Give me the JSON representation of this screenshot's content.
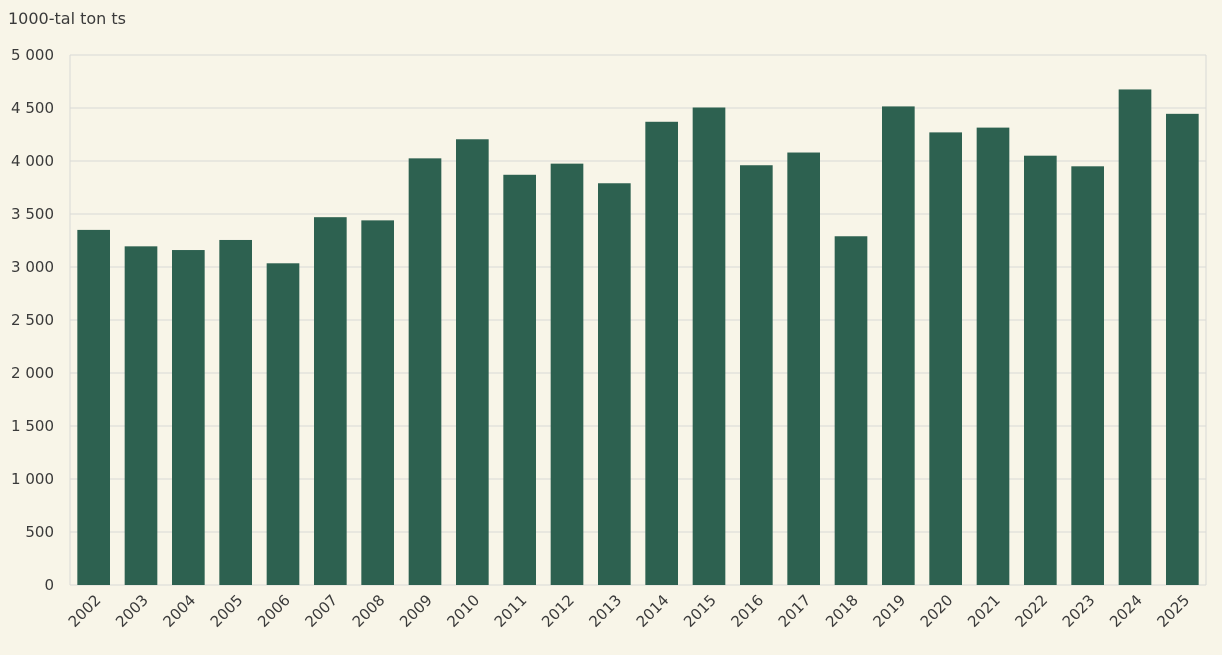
{
  "chart_data": {
    "type": "bar",
    "title": "",
    "xlabel": "",
    "ylabel": "1000-tal ton ts",
    "categories": [
      "2002",
      "2003",
      "2004",
      "2005",
      "2006",
      "2007",
      "2008",
      "2009",
      "2010",
      "2011",
      "2012",
      "2013",
      "2014",
      "2015",
      "2016",
      "2017",
      "2018",
      "2019",
      "2020",
      "2021",
      "2022",
      "2023",
      "2024",
      "2025"
    ],
    "values": [
      3350,
      3195,
      3160,
      3255,
      3035,
      3470,
      3440,
      4025,
      4205,
      3870,
      3975,
      3790,
      4370,
      4505,
      3960,
      4080,
      3290,
      4515,
      4270,
      4315,
      4050,
      3950,
      4675,
      4445
    ],
    "ylim": [
      0,
      5000
    ],
    "yticks": [
      0,
      500,
      1000,
      1500,
      2000,
      2500,
      3000,
      3500,
      4000,
      4500,
      5000
    ],
    "ytick_labels": [
      "0",
      "500",
      "1 000",
      "1 500",
      "2 000",
      "2 500",
      "3 000",
      "3 500",
      "4 000",
      "4 500",
      "5 000"
    ],
    "grid": true,
    "colors": {
      "bar": "#2d6150",
      "background": "#f8f5e8",
      "grid": "#d9d9d6"
    }
  }
}
